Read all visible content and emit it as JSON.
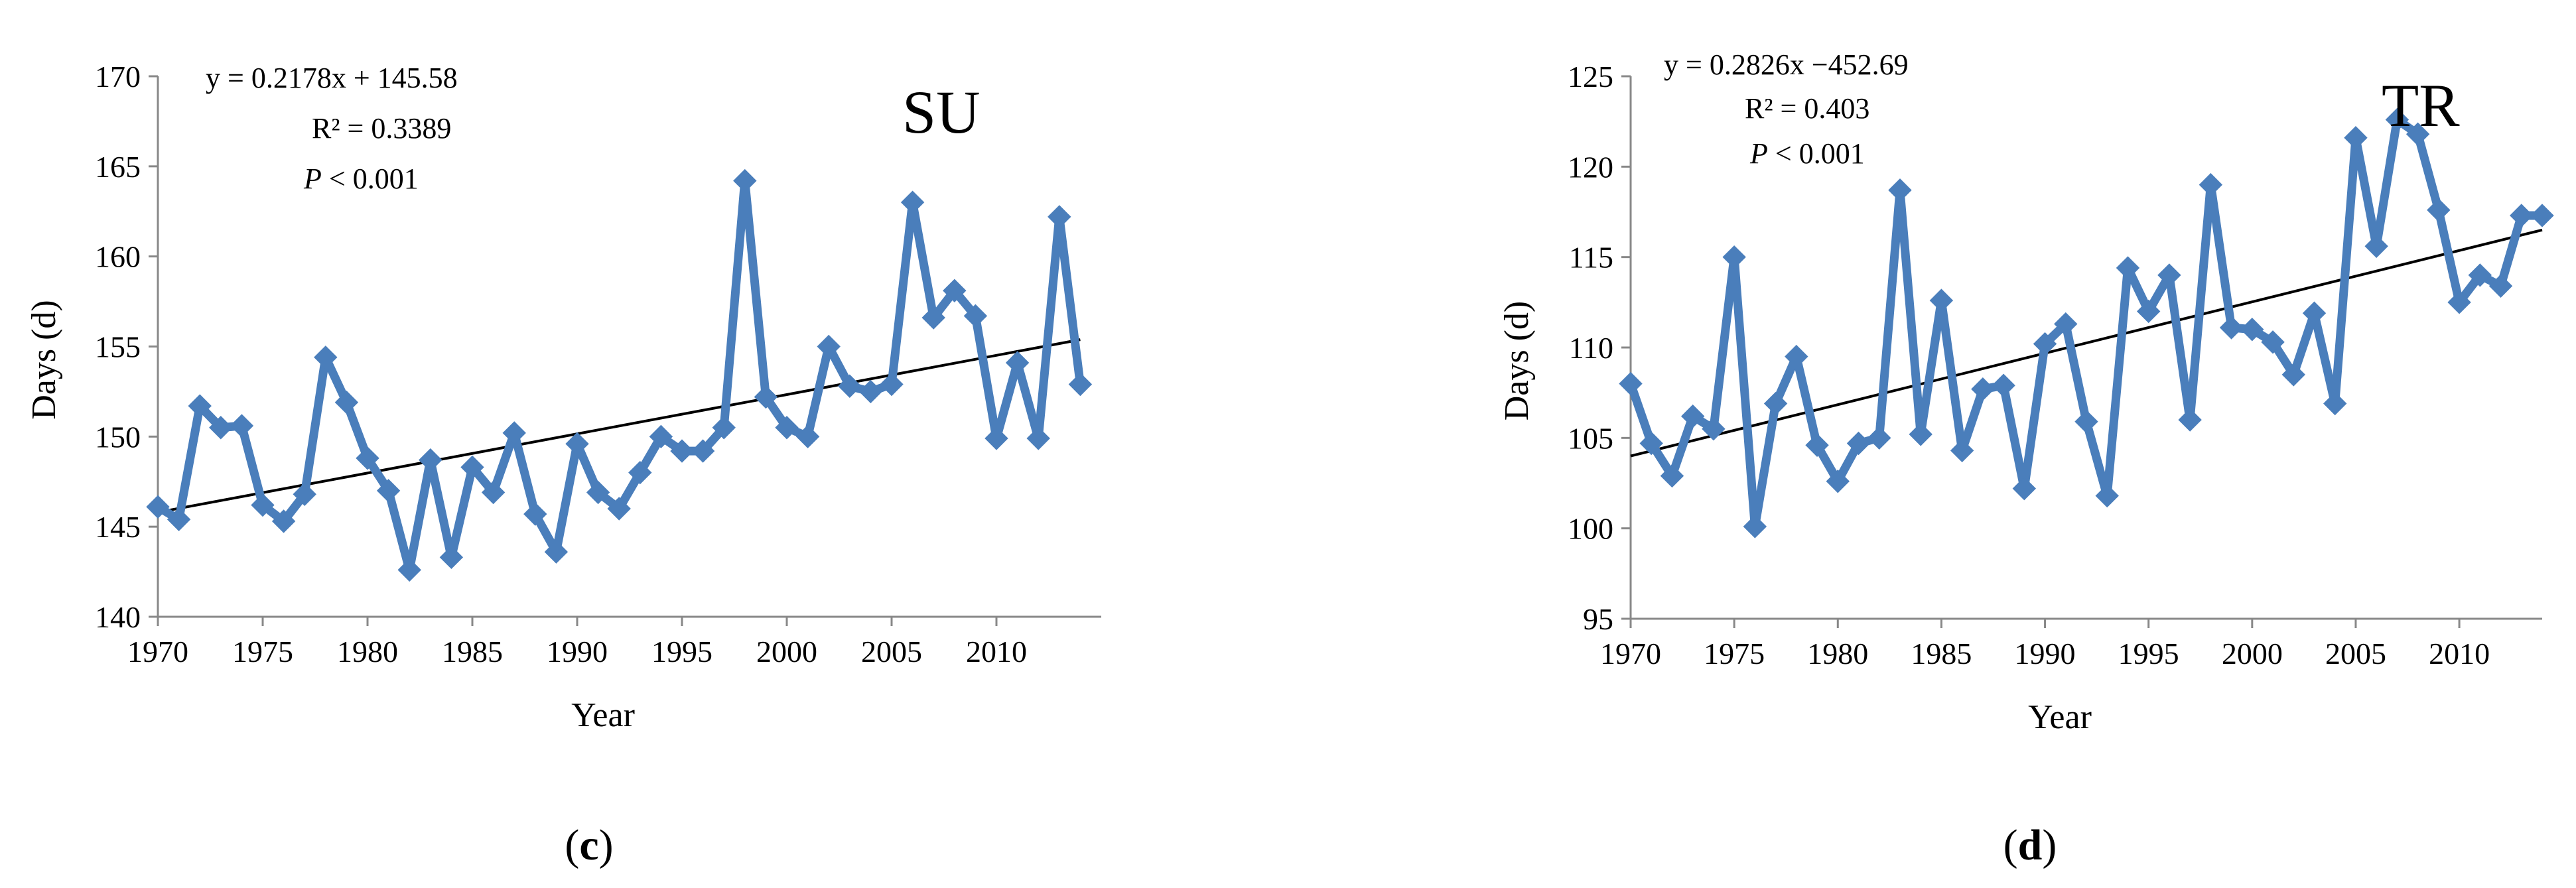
{
  "colors": {
    "series": "#4a7ebb",
    "trend": "#000000",
    "axis": "#888888"
  },
  "chart_data": [
    {
      "type": "line",
      "title": "SU",
      "xlabel": "Year",
      "ylabel": "Days (d)",
      "equation": {
        "line1": "y = 0.2178x + 145.58",
        "line2": "R² = 0.3389",
        "p_symbol": "P",
        "p_rest": " < 0.001"
      },
      "panel_label": {
        "open": "(",
        "letter": "c",
        "close": ")"
      },
      "xlim": [
        1970,
        2015
      ],
      "ylim": [
        140,
        170
      ],
      "x_ticks": [
        1970,
        1975,
        1980,
        1985,
        1990,
        1995,
        2000,
        2005,
        2010
      ],
      "x_tick_labels": [
        "1970",
        "1975",
        "1980",
        "1985",
        "1990",
        "1995",
        "2000",
        "2005",
        "2010"
      ],
      "y_ticks": [
        140,
        145,
        150,
        155,
        160,
        165,
        170
      ],
      "y_tick_labels": [
        "140",
        "145",
        "150",
        "155",
        "160",
        "165",
        "170"
      ],
      "trend": {
        "slope": 0.2178,
        "intercept": 145.58,
        "x_start": 1970,
        "x_end": 2014
      },
      "series": [
        {
          "name": "SU",
          "x": [
            1970,
            1971,
            1972,
            1973,
            1974,
            1975,
            1976,
            1977,
            1978,
            1979,
            1980,
            1981,
            1982,
            1983,
            1984,
            1985,
            1986,
            1987,
            1988,
            1989,
            1990,
            1991,
            1992,
            1993,
            1994,
            1995,
            1996,
            1997,
            1998,
            1999,
            2000,
            2001,
            2002,
            2003,
            2004,
            2005,
            2006,
            2007,
            2008,
            2009,
            2010,
            2011,
            2012,
            2013,
            2014
          ],
          "values": [
            146.1,
            145.4,
            151.7,
            150.5,
            150.6,
            146.2,
            145.3,
            146.8,
            154.4,
            151.9,
            148.8,
            147.0,
            142.6,
            148.7,
            143.3,
            148.3,
            146.9,
            150.2,
            145.7,
            143.6,
            149.6,
            146.9,
            146.0,
            148.0,
            150.0,
            149.2,
            149.2,
            150.5,
            164.2,
            152.2,
            150.5,
            150.0,
            155.0,
            152.8,
            152.5,
            152.9,
            163.0,
            156.6,
            158.1,
            156.7,
            149.9,
            154.1,
            149.9,
            162.2,
            152.9
          ]
        }
      ]
    },
    {
      "type": "line",
      "title": "TR",
      "xlabel": "Year",
      "ylabel": "Days (d)",
      "equation": {
        "line1": "y = 0.2826x −452.69",
        "line2": "R² = 0.403",
        "p_symbol": "P",
        "p_rest": " < 0.001"
      },
      "panel_label": {
        "open": "(",
        "letter": "d",
        "close": ")"
      },
      "xlim": [
        1970,
        2014
      ],
      "ylim": [
        95,
        125
      ],
      "x_ticks": [
        1970,
        1975,
        1980,
        1985,
        1990,
        1995,
        2000,
        2005,
        2010
      ],
      "x_tick_labels": [
        "1970",
        "1975",
        "1980",
        "1985",
        "1990",
        "1995",
        "2000",
        "2005",
        "2010"
      ],
      "y_ticks": [
        95,
        100,
        105,
        110,
        115,
        120,
        125
      ],
      "y_tick_labels": [
        "95",
        "100",
        "105",
        "110",
        "115",
        "120",
        "125"
      ],
      "trend": {
        "y_start": 104.0,
        "y_end": 116.5,
        "x_start": 1970,
        "x_end": 2014
      },
      "series": [
        {
          "name": "TR",
          "x": [
            1970,
            1971,
            1972,
            1973,
            1974,
            1975,
            1976,
            1977,
            1978,
            1979,
            1980,
            1981,
            1982,
            1983,
            1984,
            1985,
            1986,
            1987,
            1988,
            1989,
            1990,
            1991,
            1992,
            1993,
            1994,
            1995,
            1996,
            1997,
            1998,
            1999,
            2000,
            2001,
            2002,
            2003,
            2004,
            2005,
            2006,
            2007,
            2008,
            2009,
            2010,
            2011,
            2012,
            2013,
            2014
          ],
          "values": [
            108.0,
            104.7,
            102.9,
            106.2,
            105.5,
            115.0,
            100.1,
            106.9,
            109.5,
            104.6,
            102.6,
            104.7,
            105.0,
            118.7,
            105.2,
            112.6,
            104.3,
            107.7,
            107.9,
            102.2,
            110.2,
            111.3,
            105.9,
            101.8,
            114.4,
            112.0,
            114.0,
            106.0,
            119.0,
            111.1,
            111.0,
            110.3,
            108.5,
            111.9,
            106.9,
            121.6,
            115.6,
            122.6,
            121.8,
            117.6,
            112.5,
            114.0,
            113.4,
            117.3,
            117.3
          ]
        }
      ]
    }
  ]
}
